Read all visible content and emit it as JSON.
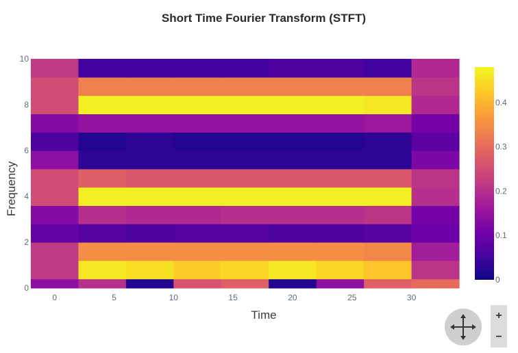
{
  "chart_data": {
    "type": "heatmap",
    "title": "Short Time Fourier Transform (STFT)",
    "xlabel": "Time",
    "ylabel": "Frequency",
    "x_ticks": [
      "0",
      "5",
      "10",
      "15",
      "20",
      "25",
      "30"
    ],
    "y_ticks": [
      "0",
      "2",
      "4",
      "6",
      "8",
      "10"
    ],
    "x_range": [
      -2,
      34
    ],
    "y_range": [
      0,
      10
    ],
    "x_edges": [
      -2,
      2,
      6,
      10,
      14,
      18,
      22,
      26,
      30,
      34
    ],
    "y_edges": [
      0,
      0.4,
      1.2,
      2,
      2.8,
      3.6,
      4.4,
      5.2,
      6,
      6.8,
      7.6,
      8.4,
      9.2,
      10
    ],
    "z": [
      [
        0.14,
        0.2,
        0.02,
        0.26,
        0.28,
        0.02,
        0.14,
        0.28,
        0.3
      ],
      [
        0.22,
        0.46,
        0.45,
        0.43,
        0.44,
        0.46,
        0.44,
        0.42,
        0.21
      ],
      [
        0.22,
        0.35,
        0.35,
        0.35,
        0.35,
        0.35,
        0.35,
        0.34,
        0.17
      ],
      [
        0.09,
        0.07,
        0.06,
        0.07,
        0.07,
        0.06,
        0.06,
        0.07,
        0.1
      ],
      [
        0.13,
        0.2,
        0.19,
        0.19,
        0.2,
        0.2,
        0.2,
        0.21,
        0.11
      ],
      [
        0.25,
        0.47,
        0.47,
        0.47,
        0.47,
        0.47,
        0.47,
        0.47,
        0.2
      ],
      [
        0.25,
        0.28,
        0.27,
        0.27,
        0.27,
        0.27,
        0.27,
        0.27,
        0.21
      ],
      [
        0.14,
        0.03,
        0.03,
        0.03,
        0.03,
        0.03,
        0.03,
        0.03,
        0.12
      ],
      [
        0.06,
        0.02,
        0.03,
        0.02,
        0.02,
        0.02,
        0.02,
        0.03,
        0.08
      ],
      [
        0.13,
        0.15,
        0.15,
        0.15,
        0.15,
        0.15,
        0.15,
        0.16,
        0.11
      ],
      [
        0.25,
        0.47,
        0.47,
        0.47,
        0.47,
        0.47,
        0.47,
        0.46,
        0.19
      ],
      [
        0.25,
        0.33,
        0.33,
        0.33,
        0.33,
        0.33,
        0.33,
        0.33,
        0.21
      ],
      [
        0.22,
        0.05,
        0.05,
        0.05,
        0.05,
        0.06,
        0.06,
        0.05,
        0.19
      ]
    ],
    "colorscale": "plasma",
    "colorbar": {
      "ticks": [
        "0",
        "0.1",
        "0.2",
        "0.3",
        "0.4"
      ],
      "range": [
        0,
        0.48
      ]
    },
    "grid": false,
    "legend": "none"
  },
  "controls": {
    "pan_icon": "move-arrows-icon",
    "zoom_in_label": "+",
    "zoom_out_label": "−"
  }
}
